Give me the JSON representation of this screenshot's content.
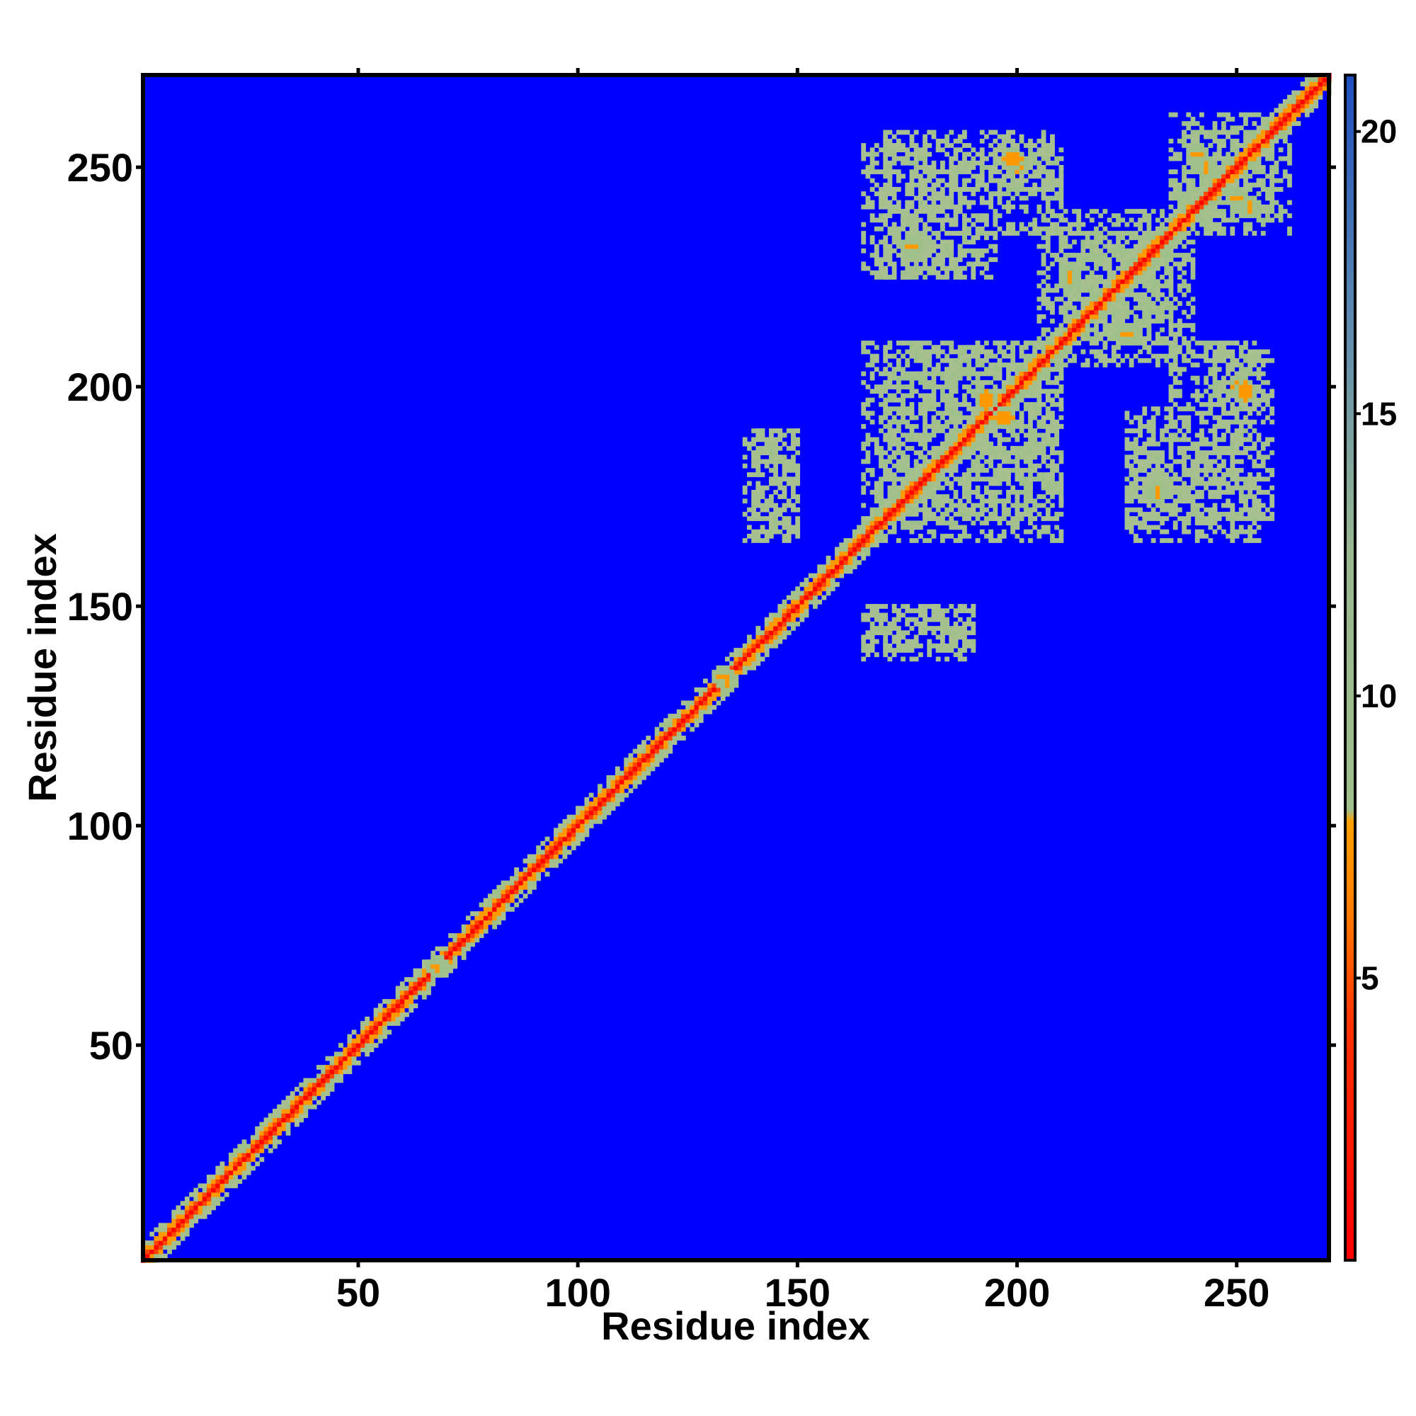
{
  "chart_data": {
    "type": "heatmap",
    "title": "",
    "xlabel": "Residue index",
    "ylabel": "Residue index",
    "xlim": [
      1,
      271
    ],
    "ylim": [
      1,
      271
    ],
    "x_ticks": [
      50,
      100,
      150,
      200,
      250
    ],
    "y_ticks": [
      50,
      100,
      150,
      200,
      250
    ],
    "colorbar": {
      "range": [
        0,
        21
      ],
      "ticks": [
        5,
        10,
        15,
        20
      ],
      "low_color": "#ff0000",
      "mid_color": "#ff9900",
      "contact_color": "#9fc08a",
      "high_color": "#0000ff",
      "contact_cutoff": 8
    },
    "background_color": "#0000ff",
    "diagonal": {
      "from": 1,
      "to": 271,
      "core_value": 3.8,
      "band_width": 4
    },
    "contact_blocks": [
      {
        "x": [
          140,
          150
        ],
        "y": [
          165,
          190
        ],
        "value": 12
      },
      {
        "x": [
          165,
          190
        ],
        "y": [
          138,
          150
        ],
        "value": 12
      },
      {
        "x": [
          170,
          210
        ],
        "y": [
          165,
          210
        ],
        "value": 11
      },
      {
        "x": [
          165,
          195
        ],
        "y": [
          225,
          255
        ],
        "value": 12
      },
      {
        "x": [
          195,
          210
        ],
        "y": [
          235,
          255
        ],
        "value": 11
      },
      {
        "x": [
          205,
          235
        ],
        "y": [
          210,
          240
        ],
        "value": 11
      },
      {
        "x": [
          225,
          245
        ],
        "y": [
          170,
          190
        ],
        "value": 12
      },
      {
        "x": [
          245,
          258
        ],
        "y": [
          170,
          210
        ],
        "value": 12
      },
      {
        "x": [
          238,
          262
        ],
        "y": [
          235,
          258
        ],
        "value": 11
      }
    ],
    "contact_hotspots": [
      {
        "x": 193,
        "y": 197,
        "value": 6
      },
      {
        "x": 200,
        "y": 251,
        "value": 6
      },
      {
        "x": 252,
        "y": 199,
        "value": 6
      },
      {
        "x": 243,
        "y": 250,
        "value": 7
      },
      {
        "x": 253,
        "y": 241,
        "value": 7
      },
      {
        "x": 134,
        "y": 133,
        "value": 7
      },
      {
        "x": 68,
        "y": 68,
        "value": 7
      },
      {
        "x": 232,
        "y": 176,
        "value": 7
      },
      {
        "x": 212,
        "y": 225,
        "value": 7
      }
    ]
  }
}
